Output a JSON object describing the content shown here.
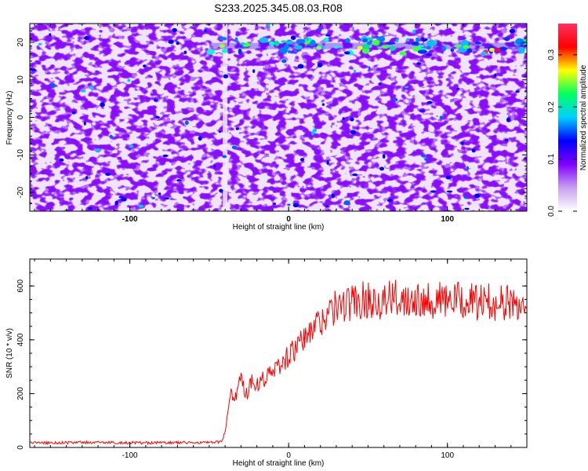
{
  "title": "S233.2025.345.08.03.R08",
  "chart_data": [
    {
      "type": "heatmap",
      "title": "S233.2025.345.08.03.R08",
      "xlabel": "Height of straight line (km)",
      "ylabel": "Frequency (Hz)",
      "xlim": [
        -163,
        150
      ],
      "ylim": [
        -25,
        25
      ],
      "xticks": [
        -100,
        0,
        100
      ],
      "yticks": [
        -20,
        -10,
        0,
        10,
        20
      ],
      "colorbar": {
        "label": "Normalized spectral amplitude",
        "range": [
          0,
          0.36
        ],
        "ticks": [
          "0.0",
          "0.1",
          "0.2",
          "0.3"
        ],
        "tick_values": [
          0.0,
          0.1,
          0.2,
          0.3
        ],
        "colormap": [
          "#ffffff",
          "#c8a0f0",
          "#7f00ff",
          "#0000ff",
          "#00d0ff",
          "#00ff60",
          "#ffff00",
          "#ff0000",
          "#ff3060"
        ]
      },
      "dominant_features": [
        {
          "description": "band",
          "freq_hz": 19,
          "x_range_km": [
            -50,
            150
          ],
          "max_amplitude": 0.36
        },
        {
          "description": "gap",
          "x_km": -40
        }
      ]
    },
    {
      "type": "line",
      "xlabel": "Height of straight line (km)",
      "ylabel": "SNR (10 * v/v)",
      "xlim": [
        -163,
        150
      ],
      "ylim": [
        0,
        700
      ],
      "xticks": [
        -100,
        0,
        100
      ],
      "yticks": [
        0,
        200,
        400,
        600
      ],
      "color": "#ff0000",
      "series": [
        {
          "name": "SNR",
          "x": [
            -163,
            -150,
            -130,
            -110,
            -90,
            -70,
            -50,
            -42,
            -40,
            -38,
            -36,
            -34,
            -32,
            -30,
            -28,
            -26,
            -24,
            -20,
            -15,
            -10,
            -5,
            0,
            5,
            10,
            15,
            20,
            25,
            30,
            40,
            50,
            60,
            70,
            80,
            90,
            100,
            110,
            120,
            130,
            140,
            150
          ],
          "y": [
            18,
            17,
            19,
            18,
            17,
            18,
            18,
            20,
            60,
            150,
            210,
            170,
            230,
            260,
            210,
            200,
            250,
            240,
            260,
            280,
            310,
            340,
            370,
            400,
            440,
            470,
            500,
            520,
            540,
            550,
            545,
            555,
            560,
            550,
            545,
            545,
            540,
            540,
            535,
            530
          ]
        }
      ]
    }
  ]
}
